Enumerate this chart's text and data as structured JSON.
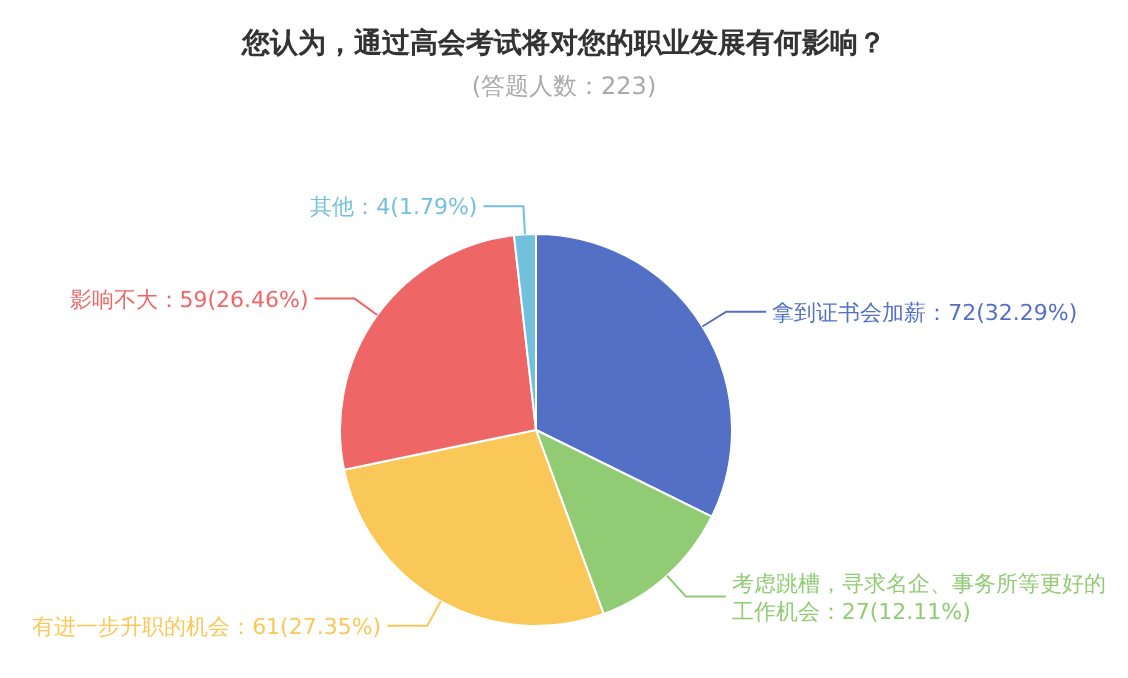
{
  "chart_data": {
    "type": "pie",
    "title": "您认为，通过高会考试将对您的职业发展有何影响？",
    "subtitle": "(答题人数：223)",
    "categories": [
      "拿到证书会加薪",
      "考虑跳槽，寻求名企、事务所等更好的工作机会",
      "有进一步升职的机会",
      "影响不大",
      "其他"
    ],
    "values": [
      72,
      27,
      61,
      59,
      4
    ],
    "value_labels": [
      "72(32.29%)",
      "27(12.11%)",
      "61(27.35%)",
      "59(26.46%)",
      "4(1.79%)"
    ],
    "colors": [
      "#5470c6",
      "#91cc75",
      "#fac858",
      "#ee6666",
      "#73c0de"
    ]
  }
}
